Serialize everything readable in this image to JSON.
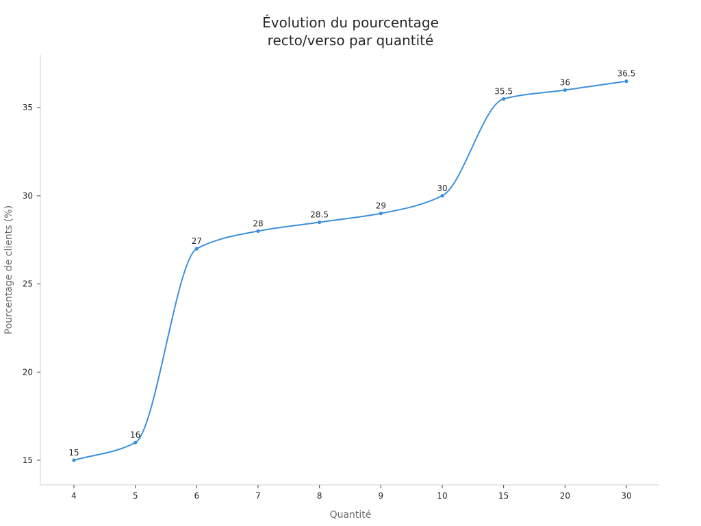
{
  "chart_data": {
    "type": "line",
    "title_line1": "Évolution du pourcentage",
    "title_line2": "recto/verso par quantité",
    "xlabel": "Quantité",
    "ylabel": "Pourcentage de clients (%)",
    "categories": [
      "4",
      "5",
      "6",
      "7",
      "8",
      "9",
      "10",
      "15",
      "20",
      "30"
    ],
    "values": [
      15,
      16,
      27,
      28,
      28.5,
      29,
      30,
      35.5,
      36,
      36.5
    ],
    "data_labels": [
      "15",
      "16",
      "27",
      "28",
      "28.5",
      "29",
      "30",
      "35.5",
      "36",
      "36.5"
    ],
    "yticks": [
      15,
      20,
      25,
      30,
      35
    ],
    "ytick_labels": [
      "15",
      "20",
      "25",
      "30",
      "35"
    ],
    "ylim": [
      13.6,
      38.0
    ],
    "grid": false,
    "line_color": "#3b8fdd",
    "curve": "smooth"
  }
}
